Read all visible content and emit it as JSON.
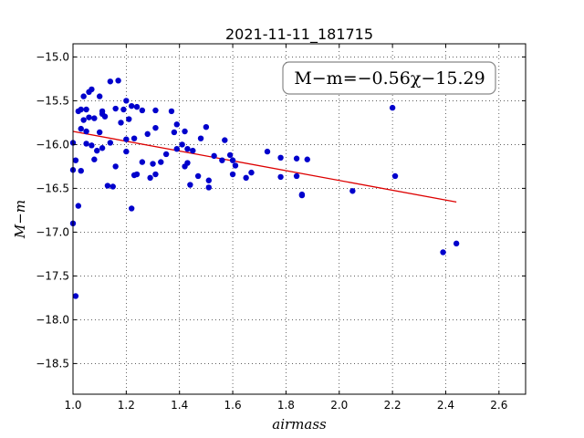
{
  "chart_data": {
    "type": "scatter",
    "title": "2021-11-11_181715",
    "xlabel": "airmass",
    "ylabel": "M−m",
    "xlim": [
      1.0,
      2.7
    ],
    "ylim": [
      -18.85,
      -14.85
    ],
    "y_inverted": true,
    "grid": true,
    "xticks": [
      1.0,
      1.2,
      1.4,
      1.6,
      1.8,
      2.0,
      2.2,
      2.4,
      2.6
    ],
    "xtick_labels": [
      "1.0",
      "1.2",
      "1.4",
      "1.6",
      "1.8",
      "2.0",
      "2.2",
      "2.4",
      "2.6"
    ],
    "yticks": [
      -15.0,
      -15.5,
      -16.0,
      -16.5,
      -17.0,
      -17.5,
      -18.0,
      -18.5
    ],
    "ytick_labels": [
      "−15.0",
      "−15.5",
      "−16.0",
      "−16.5",
      "−17.0",
      "−17.5",
      "−18.0",
      "−18.5"
    ],
    "annotation": "M−m=−0.56χ−15.29",
    "point_color": "#0000cc",
    "fit_color": "#dd0000",
    "fit": {
      "slope": -0.56,
      "intercept": -15.29,
      "x_range": [
        1.0,
        2.44
      ]
    },
    "points": [
      [
        1.0,
        -16.9
      ],
      [
        1.0,
        -16.29
      ],
      [
        1.0,
        -15.98
      ],
      [
        1.01,
        -17.73
      ],
      [
        1.01,
        -16.18
      ],
      [
        1.02,
        -16.7
      ],
      [
        1.02,
        -15.62
      ],
      [
        1.03,
        -16.3
      ],
      [
        1.03,
        -15.82
      ],
      [
        1.03,
        -15.6
      ],
      [
        1.04,
        -15.72
      ],
      [
        1.04,
        -15.45
      ],
      [
        1.05,
        -15.6
      ],
      [
        1.05,
        -15.99
      ],
      [
        1.05,
        -15.85
      ],
      [
        1.06,
        -15.4
      ],
      [
        1.06,
        -15.69
      ],
      [
        1.07,
        -16.01
      ],
      [
        1.07,
        -15.37
      ],
      [
        1.08,
        -15.7
      ],
      [
        1.08,
        -16.17
      ],
      [
        1.09,
        -16.07
      ],
      [
        1.1,
        -15.86
      ],
      [
        1.1,
        -15.45
      ],
      [
        1.11,
        -16.04
      ],
      [
        1.11,
        -15.65
      ],
      [
        1.11,
        -15.62
      ],
      [
        1.12,
        -15.68
      ],
      [
        1.13,
        -16.47
      ],
      [
        1.14,
        -15.28
      ],
      [
        1.14,
        -15.98
      ],
      [
        1.15,
        -16.48
      ],
      [
        1.16,
        -15.59
      ],
      [
        1.16,
        -16.25
      ],
      [
        1.17,
        -15.27
      ],
      [
        1.18,
        -15.75
      ],
      [
        1.19,
        -15.6
      ],
      [
        1.2,
        -15.5
      ],
      [
        1.2,
        -16.08
      ],
      [
        1.2,
        -15.94
      ],
      [
        1.21,
        -15.71
      ],
      [
        1.22,
        -16.73
      ],
      [
        1.22,
        -15.56
      ],
      [
        1.23,
        -15.93
      ],
      [
        1.23,
        -16.35
      ],
      [
        1.24,
        -15.57
      ],
      [
        1.24,
        -16.34
      ],
      [
        1.26,
        -16.2
      ],
      [
        1.26,
        -15.61
      ],
      [
        1.28,
        -15.88
      ],
      [
        1.29,
        -16.38
      ],
      [
        1.3,
        -16.22
      ],
      [
        1.31,
        -15.81
      ],
      [
        1.31,
        -15.61
      ],
      [
        1.31,
        -16.34
      ],
      [
        1.33,
        -16.2
      ],
      [
        1.35,
        -16.11
      ],
      [
        1.37,
        -15.62
      ],
      [
        1.38,
        -15.86
      ],
      [
        1.39,
        -16.05
      ],
      [
        1.39,
        -15.77
      ],
      [
        1.41,
        -16.0
      ],
      [
        1.42,
        -15.85
      ],
      [
        1.42,
        -16.25
      ],
      [
        1.43,
        -16.05
      ],
      [
        1.43,
        -16.21
      ],
      [
        1.44,
        -16.46
      ],
      [
        1.45,
        -16.07
      ],
      [
        1.47,
        -16.36
      ],
      [
        1.48,
        -15.93
      ],
      [
        1.5,
        -15.8
      ],
      [
        1.51,
        -16.49
      ],
      [
        1.51,
        -16.41
      ],
      [
        1.53,
        -16.13
      ],
      [
        1.56,
        -16.18
      ],
      [
        1.57,
        -15.95
      ],
      [
        1.59,
        -16.12
      ],
      [
        1.6,
        -16.34
      ],
      [
        1.6,
        -16.18
      ],
      [
        1.61,
        -16.24
      ],
      [
        1.65,
        -16.38
      ],
      [
        1.67,
        -16.32
      ],
      [
        1.73,
        -16.08
      ],
      [
        1.78,
        -16.37
      ],
      [
        1.78,
        -16.15
      ],
      [
        1.84,
        -16.16
      ],
      [
        1.84,
        -16.36
      ],
      [
        1.86,
        -16.58
      ],
      [
        1.86,
        -16.57
      ],
      [
        1.88,
        -16.17
      ],
      [
        2.05,
        -16.53
      ],
      [
        2.2,
        -15.58
      ],
      [
        2.21,
        -16.36
      ],
      [
        2.39,
        -17.23
      ],
      [
        2.44,
        -17.13
      ]
    ]
  }
}
